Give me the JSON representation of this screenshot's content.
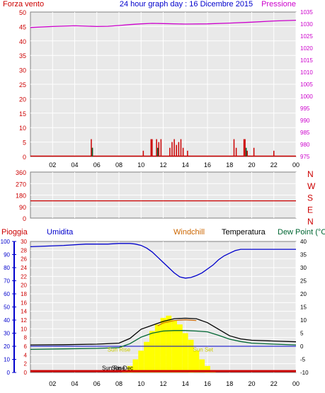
{
  "colors": {
    "background": "#ffffff",
    "plot_bg": "#e9e9e9",
    "grid": "#ffffff",
    "frame": "#808080",
    "wind": "#cc0000",
    "pressure": "#cc00cc",
    "direction": "#cc0000",
    "humidity": "#0000cc",
    "temperature": "#000000",
    "windchill": "#cc6600",
    "dewpoint": "#006633",
    "sun": "#ffff00",
    "rain": "#cc0000",
    "black": "#000000"
  },
  "chart_data": [
    {
      "id": "wind-pressure",
      "type": "bar",
      "title": "24 hour graph day : 16 Dicembre 2015",
      "left_label": "Forza vento",
      "right_label": "Pressione",
      "x_ticks": [
        "02",
        "04",
        "06",
        "08",
        "10",
        "12",
        "14",
        "16",
        "18",
        "20",
        "22",
        "00"
      ],
      "x_range": [
        0,
        24
      ],
      "y_left": {
        "range": [
          0,
          50
        ],
        "ticks": [
          "0",
          "5",
          "10",
          "15",
          "20",
          "25",
          "30",
          "35",
          "40",
          "45",
          "50"
        ]
      },
      "y_right": {
        "range": [
          975,
          1035
        ],
        "ticks": [
          "975",
          "980",
          "985",
          "990",
          "995",
          "1000",
          "1005",
          "1010",
          "1015",
          "1020",
          "1025",
          "1030",
          "1035"
        ]
      },
      "grid": true,
      "pressure": {
        "x": [
          0,
          2,
          4,
          6,
          7,
          8,
          9,
          10,
          11,
          12,
          14,
          16,
          18,
          20,
          22,
          24
        ],
        "y": [
          1028.6,
          1029.0,
          1029.3,
          1029.0,
          1029.1,
          1029.4,
          1029.8,
          1030.1,
          1030.3,
          1030.2,
          1030.0,
          1030.1,
          1030.4,
          1030.8,
          1031.3,
          1031.6
        ]
      },
      "wind_gusts": {
        "x": [
          5.5,
          5.6,
          10.2,
          10.9,
          11.0,
          11.4,
          11.6,
          11.8,
          12.6,
          12.8,
          13.0,
          13.2,
          13.4,
          13.6,
          13.8,
          14.2,
          18.4,
          18.6,
          19.3,
          19.4,
          19.6,
          20.2,
          22.0
        ],
        "y": [
          6,
          3,
          2,
          6,
          6,
          6,
          5,
          6,
          3,
          5,
          6,
          4,
          5,
          6,
          3,
          2,
          6,
          3,
          6,
          6,
          2,
          3,
          2
        ]
      },
      "wind_average": {
        "x": [
          5.6,
          11.5,
          19.5
        ],
        "y": [
          1,
          1,
          1
        ]
      }
    },
    {
      "id": "wind-direction",
      "type": "line",
      "x_range": [
        0,
        24
      ],
      "y_range": [
        0,
        360
      ],
      "y_ticks": [
        "0",
        "90",
        "180",
        "270",
        "360"
      ],
      "right_ticks": [
        "N",
        "E",
        "S",
        "W",
        "N"
      ],
      "grid": true,
      "series": [
        {
          "x": [
            0,
            24
          ],
          "y": [
            135,
            135
          ]
        }
      ]
    },
    {
      "id": "temp-humidity",
      "type": "line",
      "labels": {
        "rain": "Pioggia",
        "humidity": "Umidita",
        "windchill": "Windchill",
        "temperature": "Temperatura",
        "dewpoint": "Dew Point (°C"
      },
      "x_ticks": [
        "02",
        "04",
        "06",
        "08",
        "10",
        "12",
        "14",
        "16",
        "18",
        "20",
        "22",
        "00"
      ],
      "x_range": [
        0,
        24
      ],
      "humidity_axis": {
        "range": [
          0,
          100
        ],
        "ticks": [
          "0",
          "10",
          "20",
          "30",
          "40",
          "50",
          "60",
          "70",
          "80",
          "90",
          "100"
        ]
      },
      "rain_axis": {
        "range": [
          0,
          30
        ],
        "ticks": [
          "0",
          "2",
          "4",
          "6",
          "8",
          "10",
          "12",
          "14",
          "16",
          "18",
          "20",
          "22",
          "24",
          "26",
          "28",
          "30"
        ]
      },
      "temp_axis": {
        "range": [
          -10,
          40
        ],
        "ticks": [
          "-10",
          "-5",
          "0",
          "5",
          "10",
          "15",
          "20",
          "25",
          "30",
          "35",
          "40"
        ]
      },
      "grid": true,
      "annotations": [
        {
          "text": "Sun Rise",
          "x": 8.0,
          "y_temp": -2.0
        },
        {
          "text": "Sun Set",
          "x": 15.6,
          "y_temp": -2.0
        },
        {
          "text": "Sun Rise",
          "x": 7.5,
          "y_temp": -9.0
        },
        {
          "text": "Sun Dec",
          "x": 8.3,
          "y_temp": -9.0
        }
      ],
      "humidity": {
        "x": [
          0,
          3,
          5,
          6,
          7,
          8,
          9,
          9.5,
          10,
          10.5,
          11,
          11.5,
          12,
          12.5,
          13,
          13.5,
          14,
          14.5,
          15,
          15.5,
          16,
          16.5,
          17,
          17.5,
          18,
          18.5,
          19,
          19.5,
          20,
          22,
          24
        ],
        "y": [
          96,
          97,
          98,
          98,
          98,
          98.5,
          98.5,
          98,
          97,
          95,
          92,
          88,
          84,
          80,
          76,
          73,
          72,
          72.5,
          74,
          76,
          79,
          82,
          86,
          89,
          91,
          93,
          94,
          94,
          94,
          94,
          94
        ]
      },
      "temperature": {
        "x": [
          0,
          3,
          6,
          8,
          9,
          10,
          11,
          12,
          13,
          14,
          15,
          16,
          17,
          18,
          19,
          20,
          22,
          24
        ],
        "y": [
          0.5,
          0.6,
          0.8,
          1.2,
          3.0,
          6.5,
          8.0,
          9.5,
          10.5,
          10.7,
          10.5,
          9.0,
          6.5,
          4.0,
          2.8,
          2.3,
          2.0,
          1.7
        ]
      },
      "windchill": {
        "x": [
          11.5,
          12.0,
          13.0,
          14.0,
          15.0
        ],
        "y": [
          7.8,
          8.9,
          9.8,
          10.1,
          9.8
        ]
      },
      "dewpoint": {
        "x": [
          0,
          3,
          6,
          8,
          9,
          10,
          11,
          12,
          13,
          14,
          15,
          16,
          17,
          18,
          19,
          20,
          22,
          24
        ],
        "y": [
          -1.2,
          -1.0,
          -0.8,
          -0.5,
          1.0,
          3.5,
          5.0,
          5.8,
          6.0,
          6.0,
          5.8,
          5.5,
          4.2,
          2.7,
          1.8,
          1.2,
          0.8,
          0.5
        ]
      },
      "zero_line_temp": 0,
      "sunshine": {
        "x": [
          8.5,
          9.0,
          9.5,
          10.0,
          10.5,
          11.0,
          11.5,
          12.0,
          12.5,
          13.0,
          13.5,
          14.0,
          14.5,
          15.0,
          15.5,
          16.0,
          16.5
        ],
        "y": [
          0.5,
          1.5,
          3.0,
          5.0,
          7.0,
          9.5,
          11.0,
          12.5,
          13.0,
          12.0,
          11.0,
          9.0,
          7.5,
          5.0,
          3.0,
          1.5,
          0.5
        ]
      },
      "rain": {
        "x": [
          0,
          24
        ],
        "y": [
          0.3,
          0.3
        ]
      }
    }
  ]
}
